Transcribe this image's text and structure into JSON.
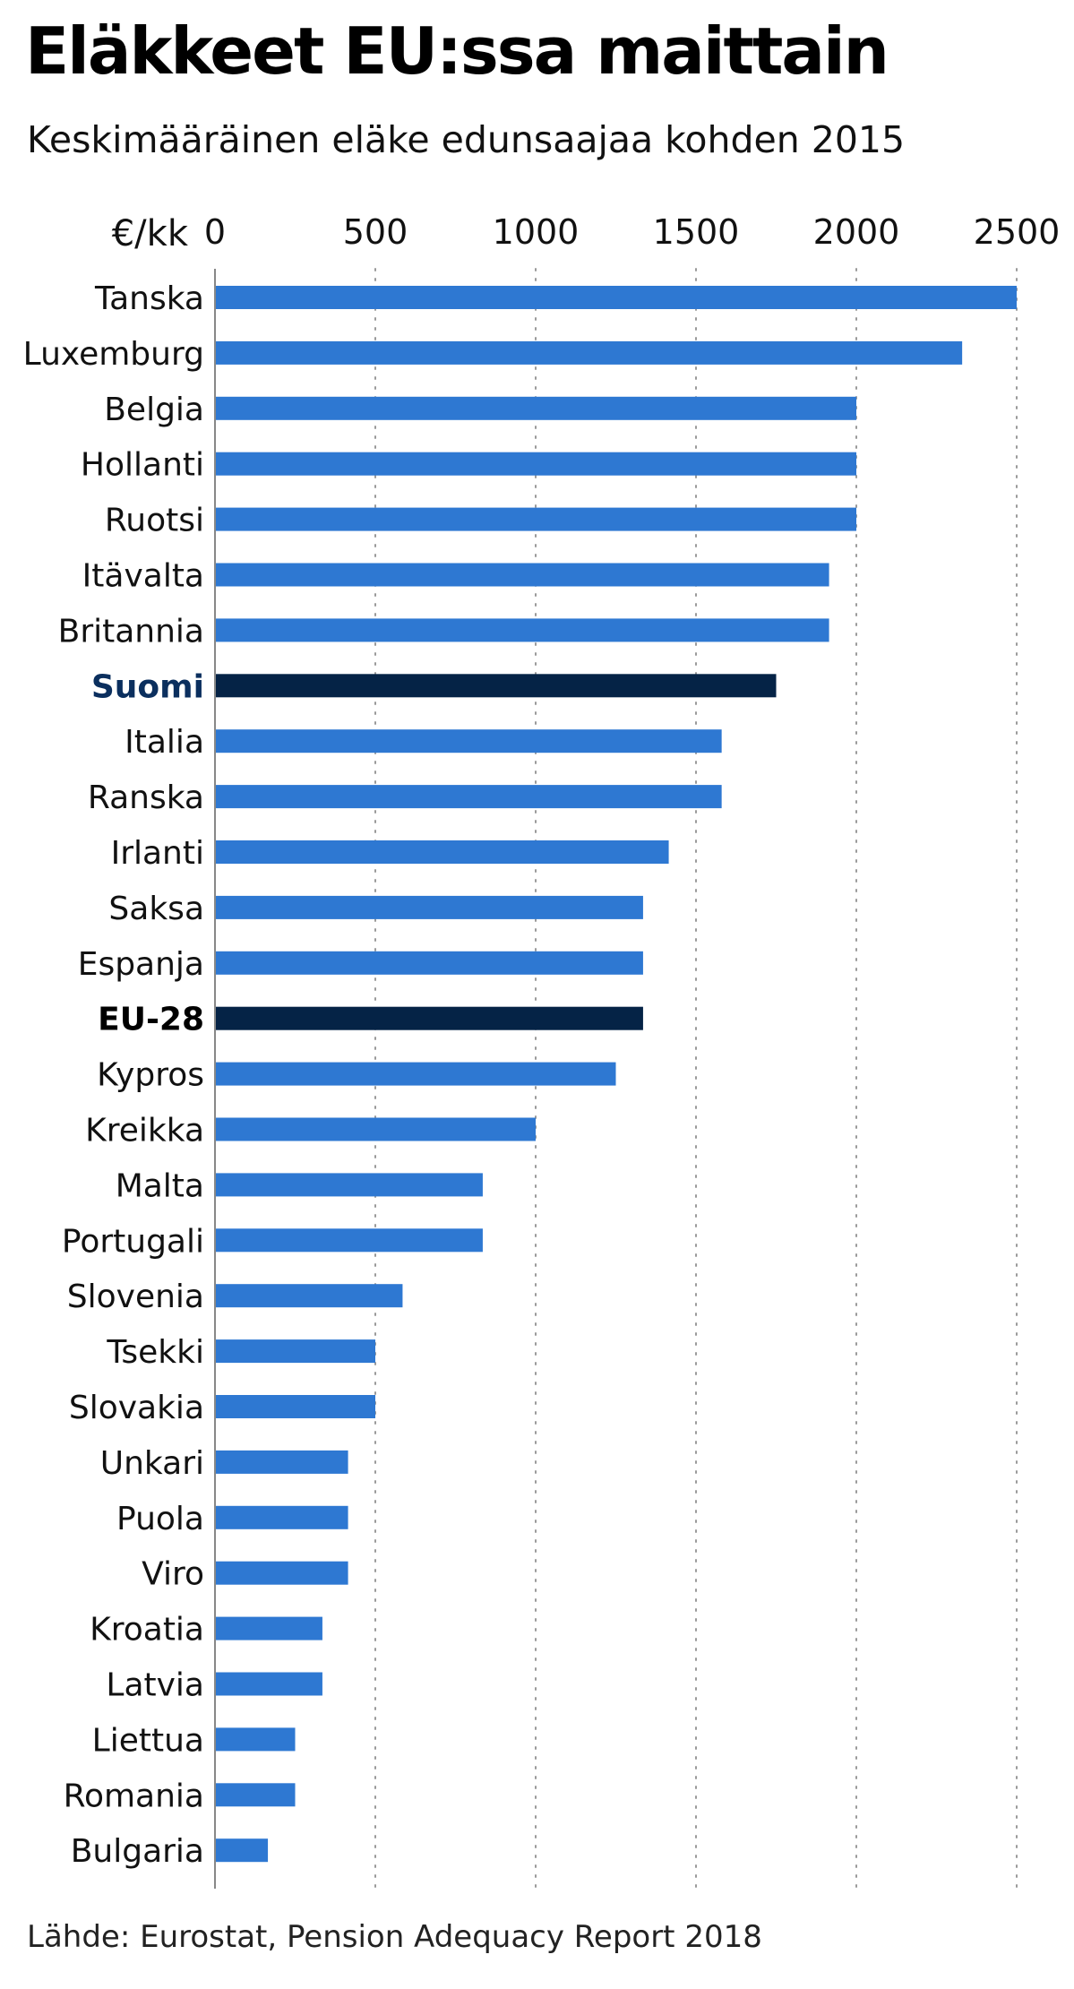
{
  "header": {
    "title": "Eläkkeet EU:ssa maittain",
    "subtitle": "Keskimääräinen eläke edunsaajaa kohden 2015"
  },
  "footer": {
    "source": "Lähde: Eurostat, Pension Adequacy Report 2018"
  },
  "colors": {
    "bar": "#2e78d2",
    "highlight_bar": "#052346",
    "highlight_label_suomi": "#0b2f5e",
    "highlight_label_eu": "#000000",
    "gridline": "#9a9a9a",
    "axis": "#888888",
    "text": "#111111"
  },
  "chart_data": {
    "type": "bar",
    "orientation": "horizontal",
    "title": "Eläkkeet EU:ssa maittain",
    "subtitle": "Keskimääräinen eläke edunsaajaa kohden 2015",
    "unit_label": "€/kk",
    "xlim": [
      0,
      2500
    ],
    "xticks": [
      0,
      500,
      1000,
      1500,
      2000,
      2500
    ],
    "tick_labels": [
      "0",
      "500",
      "1000",
      "1500",
      "2000",
      "2500"
    ],
    "grid": true,
    "axis_position": "top",
    "categories": [
      "Tanska",
      "Luxemburg",
      "Belgia",
      "Hollanti",
      "Ruotsi",
      "Itävalta",
      "Britannia",
      "Suomi",
      "Italia",
      "Ranska",
      "Irlanti",
      "Saksa",
      "Espanja",
      "EU-28",
      "Kypros",
      "Kreikka",
      "Malta",
      "Portugali",
      "Slovenia",
      "Tsekki",
      "Slovakia",
      "Unkari",
      "Puola",
      "Viro",
      "Kroatia",
      "Latvia",
      "Liettua",
      "Romania",
      "Bulgaria"
    ],
    "values": [
      2500,
      2330,
      2000,
      2000,
      2000,
      1915,
      1915,
      1750,
      1580,
      1580,
      1415,
      1335,
      1335,
      1335,
      1250,
      1000,
      835,
      835,
      585,
      500,
      500,
      415,
      415,
      415,
      335,
      335,
      250,
      250,
      165
    ],
    "highlighted": [
      "Suomi",
      "EU-28"
    ],
    "source": "Lähde: Eurostat, Pension Adequacy Report 2018"
  }
}
